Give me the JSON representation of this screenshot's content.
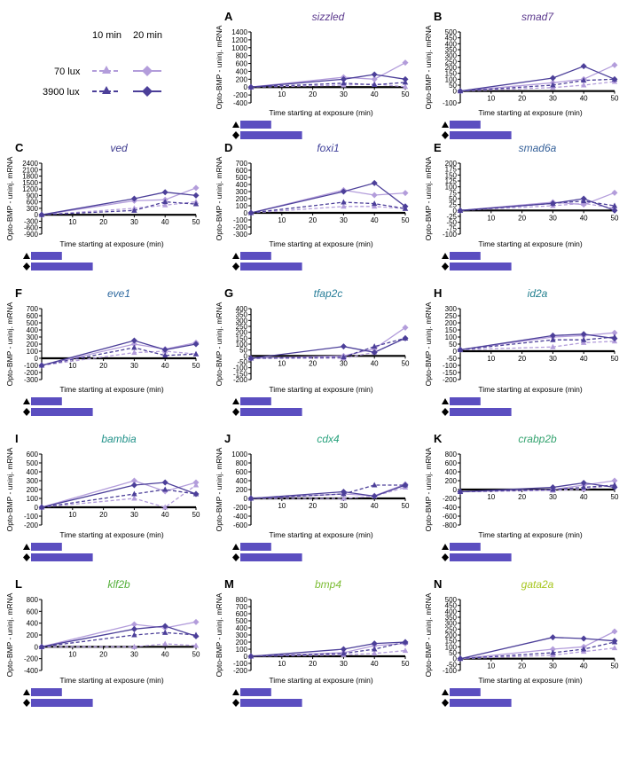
{
  "legend": {
    "col1": "10 min",
    "col2": "20 min",
    "row1": "70 lux",
    "row2": "3900 lux",
    "colors": {
      "light": "#b39ddb",
      "dark": "#4c3f99"
    }
  },
  "duration_bar_color": "#5b4ec0",
  "xlabel": "Time starting at exposure (min)",
  "ylabel": "Opto-BMP - uninj. mRNA",
  "series_styles": [
    {
      "key": "l10",
      "legend": "70 lux, 10 min",
      "color": "#b39ddb",
      "dashed": true,
      "marker": "triangle"
    },
    {
      "key": "l20",
      "legend": "70 lux, 20 min",
      "color": "#b39ddb",
      "dashed": false,
      "marker": "diamond"
    },
    {
      "key": "h10",
      "legend": "3900 lux, 10 min",
      "color": "#4c3f99",
      "dashed": true,
      "marker": "triangle"
    },
    {
      "key": "h20",
      "legend": "3900 lux, 20 min",
      "color": "#4c3f99",
      "dashed": false,
      "marker": "diamond"
    }
  ],
  "chart_data": [
    {
      "letter": "A",
      "gene": "sizzled",
      "title_color": "#5c3a8e",
      "type": "line",
      "x": [
        0,
        30,
        40,
        50
      ],
      "xticks": [
        10,
        20,
        30,
        40,
        50
      ],
      "xlim": [
        0,
        50
      ],
      "ylim": [
        -400,
        1400
      ],
      "yticks": [
        -400,
        -200,
        0,
        200,
        400,
        600,
        800,
        1000,
        1200,
        1400
      ],
      "series": {
        "l10": [
          0,
          50,
          80,
          10
        ],
        "l20": [
          0,
          250,
          200,
          620
        ],
        "h10": [
          0,
          100,
          60,
          120
        ],
        "h20": [
          0,
          200,
          320,
          200
        ]
      }
    },
    {
      "letter": "B",
      "gene": "smad7",
      "title_color": "#5c3a8e",
      "type": "line",
      "x": [
        0,
        30,
        40,
        50
      ],
      "xticks": [
        10,
        20,
        30,
        40,
        50
      ],
      "xlim": [
        0,
        50
      ],
      "ylim": [
        -100,
        500
      ],
      "yticks": [
        -100,
        0,
        50,
        100,
        150,
        200,
        250,
        300,
        350,
        400,
        450,
        500
      ],
      "series": {
        "l10": [
          0,
          30,
          50,
          80
        ],
        "l20": [
          0,
          70,
          100,
          220
        ],
        "h10": [
          0,
          50,
          90,
          100
        ],
        "h20": [
          0,
          110,
          210,
          100
        ]
      }
    },
    {
      "letter": "C",
      "gene": "ved",
      "title_color": "#3d3a8e",
      "type": "line",
      "x": [
        0,
        30,
        40,
        50
      ],
      "xticks": [
        10,
        20,
        30,
        40,
        50
      ],
      "xlim": [
        0,
        50
      ],
      "ylim": [
        -900,
        2400
      ],
      "yticks": [
        -900,
        -600,
        -300,
        0,
        300,
        600,
        900,
        1200,
        1500,
        1800,
        2100,
        2400
      ],
      "series": {
        "l10": [
          0,
          300,
          450,
          600
        ],
        "l20": [
          0,
          650,
          700,
          1250
        ],
        "h10": [
          0,
          200,
          600,
          500
        ],
        "h20": [
          0,
          750,
          1050,
          900
        ]
      }
    },
    {
      "letter": "D",
      "gene": "foxi1",
      "title_color": "#3e3f99",
      "type": "line",
      "x": [
        0,
        30,
        40,
        50
      ],
      "xticks": [
        10,
        20,
        30,
        40,
        50
      ],
      "xlim": [
        0,
        50
      ],
      "ylim": [
        -300,
        700
      ],
      "yticks": [
        -300,
        -200,
        -100,
        0,
        100,
        200,
        300,
        400,
        500,
        600,
        700
      ],
      "series": {
        "l10": [
          0,
          90,
          90,
          60
        ],
        "l20": [
          0,
          320,
          250,
          280
        ],
        "h10": [
          0,
          150,
          130,
          60
        ],
        "h20": [
          0,
          300,
          420,
          90
        ]
      }
    },
    {
      "letter": "E",
      "gene": "smad6a",
      "title_color": "#37629a",
      "type": "line",
      "x": [
        0,
        30,
        40,
        50
      ],
      "xticks": [
        10,
        20,
        30,
        40,
        50
      ],
      "xlim": [
        0,
        50
      ],
      "ylim": [
        -100,
        200
      ],
      "yticks": [
        -100,
        -75,
        -50,
        -25,
        0,
        25,
        50,
        75,
        100,
        125,
        150,
        175,
        200
      ],
      "series": {
        "l10": [
          0,
          20,
          30,
          10
        ],
        "l20": [
          0,
          35,
          25,
          75
        ],
        "h10": [
          0,
          30,
          40,
          20
        ],
        "h20": [
          0,
          30,
          50,
          0
        ]
      }
    },
    {
      "letter": "F",
      "gene": "eve1",
      "title_color": "#2f6aa0",
      "type": "line",
      "x": [
        0,
        30,
        40,
        50
      ],
      "xticks": [
        10,
        20,
        30,
        40,
        50
      ],
      "xlim": [
        0,
        50
      ],
      "ylim": [
        -300,
        700
      ],
      "yticks": [
        -300,
        -200,
        -100,
        0,
        100,
        200,
        300,
        400,
        500,
        600,
        700
      ],
      "series": {
        "l10": [
          -100,
          80,
          100,
          60
        ],
        "l20": [
          -100,
          200,
          130,
          220
        ],
        "h10": [
          -100,
          150,
          40,
          60
        ],
        "h20": [
          -100,
          250,
          120,
          200
        ]
      }
    },
    {
      "letter": "G",
      "gene": "tfap2c",
      "title_color": "#2a7f9a",
      "type": "line",
      "x": [
        0,
        30,
        40,
        50
      ],
      "xticks": [
        10,
        20,
        30,
        40,
        50
      ],
      "xlim": [
        0,
        50
      ],
      "ylim": [
        -200,
        400
      ],
      "yticks": [
        -200,
        -150,
        -100,
        -50,
        0,
        50,
        100,
        150,
        200,
        250,
        300,
        350,
        400
      ],
      "series": {
        "l10": [
          -20,
          -20,
          30,
          150
        ],
        "l20": [
          -20,
          0,
          60,
          240
        ],
        "h10": [
          -20,
          -10,
          80,
          150
        ],
        "h20": [
          -20,
          80,
          30,
          150
        ]
      }
    },
    {
      "letter": "H",
      "gene": "id2a",
      "title_color": "#23808f",
      "type": "line",
      "x": [
        0,
        30,
        40,
        50
      ],
      "xticks": [
        10,
        20,
        30,
        40,
        50
      ],
      "xlim": [
        0,
        50
      ],
      "ylim": [
        -200,
        300
      ],
      "yticks": [
        -200,
        -150,
        -100,
        -50,
        0,
        50,
        100,
        150,
        200,
        250,
        300
      ],
      "series": {
        "l10": [
          10,
          30,
          60,
          70
        ],
        "l20": [
          10,
          100,
          110,
          130
        ],
        "h10": [
          10,
          80,
          80,
          100
        ],
        "h20": [
          10,
          110,
          120,
          90
        ]
      }
    },
    {
      "letter": "I",
      "gene": "bambia",
      "title_color": "#22928a",
      "type": "line",
      "x": [
        0,
        30,
        40,
        50
      ],
      "xticks": [
        10,
        20,
        30,
        40,
        50
      ],
      "xlim": [
        0,
        50
      ],
      "ylim": [
        -200,
        600
      ],
      "yticks": [
        -200,
        -100,
        0,
        100,
        200,
        300,
        400,
        500,
        600
      ],
      "series": {
        "l10": [
          0,
          100,
          0,
          250
        ],
        "l20": [
          0,
          300,
          180,
          280
        ],
        "h10": [
          0,
          150,
          200,
          150
        ],
        "h20": [
          0,
          250,
          280,
          150
        ]
      }
    },
    {
      "letter": "J",
      "gene": "cdx4",
      "title_color": "#2aa37e",
      "type": "line",
      "x": [
        0,
        30,
        40,
        50
      ],
      "xticks": [
        10,
        20,
        30,
        40,
        50
      ],
      "xlim": [
        0,
        50
      ],
      "ylim": [
        -600,
        1000
      ],
      "yticks": [
        -600,
        -400,
        -200,
        0,
        200,
        400,
        600,
        800,
        1000
      ],
      "series": {
        "l10": [
          0,
          0,
          50,
          250
        ],
        "l20": [
          0,
          100,
          60,
          320
        ],
        "h10": [
          0,
          100,
          300,
          300
        ],
        "h20": [
          0,
          150,
          50,
          300
        ]
      }
    },
    {
      "letter": "K",
      "gene": "crabp2b",
      "title_color": "#34a36f",
      "type": "line",
      "x": [
        0,
        30,
        40,
        50
      ],
      "xticks": [
        10,
        20,
        30,
        40,
        50
      ],
      "xlim": [
        0,
        50
      ],
      "ylim": [
        -800,
        800
      ],
      "yticks": [
        -800,
        -600,
        -400,
        -200,
        0,
        200,
        400,
        600,
        800
      ],
      "series": {
        "l10": [
          -50,
          -20,
          10,
          100
        ],
        "l20": [
          -50,
          0,
          100,
          200
        ],
        "h10": [
          -50,
          0,
          50,
          100
        ],
        "h20": [
          -50,
          50,
          150,
          50
        ]
      }
    },
    {
      "letter": "L",
      "gene": "klf2b",
      "title_color": "#55b03b",
      "type": "line",
      "x": [
        0,
        30,
        40,
        50
      ],
      "xticks": [
        10,
        20,
        30,
        40,
        50
      ],
      "xlim": [
        0,
        50
      ],
      "ylim": [
        -400,
        800
      ],
      "yticks": [
        -400,
        -200,
        0,
        200,
        400,
        600,
        800
      ],
      "series": {
        "l10": [
          0,
          0,
          50,
          20
        ],
        "l20": [
          0,
          380,
          320,
          420
        ],
        "h10": [
          0,
          200,
          240,
          200
        ],
        "h20": [
          0,
          300,
          350,
          180
        ]
      }
    },
    {
      "letter": "M",
      "gene": "bmp4",
      "title_color": "#7dbd35",
      "type": "line",
      "x": [
        0,
        30,
        40,
        50
      ],
      "xticks": [
        10,
        20,
        30,
        40,
        50
      ],
      "xlim": [
        0,
        50
      ],
      "ylim": [
        -200,
        800
      ],
      "yticks": [
        -200,
        -100,
        0,
        100,
        200,
        300,
        400,
        500,
        600,
        700,
        800
      ],
      "series": {
        "l10": [
          0,
          20,
          40,
          80
        ],
        "l20": [
          0,
          50,
          150,
          180
        ],
        "h10": [
          0,
          40,
          100,
          200
        ],
        "h20": [
          0,
          100,
          180,
          200
        ]
      }
    },
    {
      "letter": "N",
      "gene": "gata2a",
      "title_color": "#a7c61f",
      "type": "line",
      "x": [
        0,
        30,
        40,
        50
      ],
      "xticks": [
        10,
        20,
        30,
        40,
        50
      ],
      "xlim": [
        0,
        50
      ],
      "ylim": [
        -100,
        500
      ],
      "yticks": [
        -100,
        -50,
        0,
        50,
        100,
        150,
        200,
        250,
        300,
        350,
        400,
        450,
        500
      ],
      "series": {
        "l10": [
          0,
          30,
          60,
          90
        ],
        "l20": [
          0,
          80,
          100,
          230
        ],
        "h10": [
          0,
          50,
          80,
          140
        ],
        "h20": [
          0,
          180,
          170,
          150
        ]
      }
    }
  ]
}
